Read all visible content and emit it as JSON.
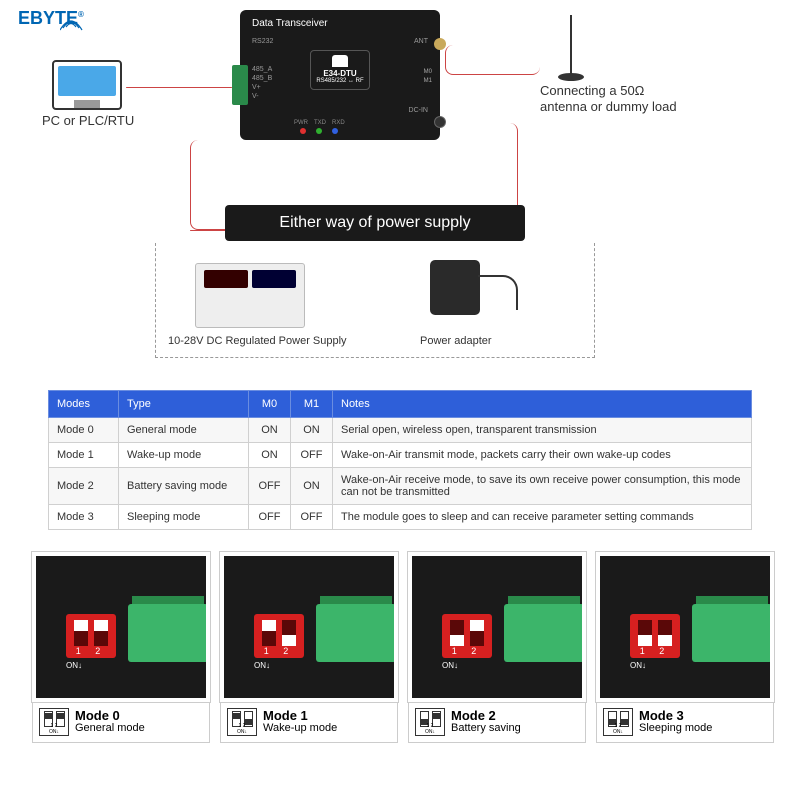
{
  "brand": "EBYTE",
  "pc_label": "PC or PLC/RTU",
  "device": {
    "title": "Data Transceiver",
    "model": "E34-DTU",
    "sub": "RS485/232 ↔ RF",
    "port_rs232": "RS232",
    "port_485a": "485_A",
    "port_485b": "485_B",
    "port_vp": "V+",
    "port_vm": "V-",
    "port_ant": "ANT",
    "port_dcin": "DC-IN",
    "pin_m0": "M0",
    "pin_m1": "M1",
    "leds": [
      "PWR",
      "TXD",
      "RXD"
    ],
    "led_colors": [
      "#e03030",
      "#30b030",
      "#3060e0"
    ]
  },
  "antenna_label_1": "Connecting a 50Ω",
  "antenna_label_2": "antenna or dummy load",
  "power_banner": "Either way of power supply",
  "psu_label": "10-28V DC Regulated Power Supply",
  "adapter_label": "Power adapter",
  "table": {
    "headers": [
      "Modes",
      "Type",
      "M0",
      "M1",
      "Notes"
    ],
    "rows": [
      [
        "Mode 0",
        "General mode",
        "ON",
        "ON",
        "Serial open, wireless open, transparent transmission"
      ],
      [
        "Mode 1",
        "Wake-up mode",
        "ON",
        "OFF",
        "Wake-on-Air transmit mode, packets carry their own wake-up codes"
      ],
      [
        "Mode 2",
        "Battery saving mode",
        "OFF",
        "ON",
        "Wake-on-Air receive mode, to save its own receive power consumption, this mode can not be transmitted"
      ],
      [
        "Mode 3",
        "Sleeping mode",
        "OFF",
        "OFF",
        "The module goes to sleep and can receive parameter setting commands"
      ]
    ]
  },
  "modes": [
    {
      "title": "Mode 0",
      "sub": "General mode",
      "sw": [
        1,
        1
      ]
    },
    {
      "title": "Mode 1",
      "sub": "Wake-up mode",
      "sw": [
        1,
        0
      ]
    },
    {
      "title": "Mode 2",
      "sub": "Battery saving",
      "sw": [
        0,
        1
      ]
    },
    {
      "title": "Mode 3",
      "sub": "Sleeping mode",
      "sw": [
        0,
        0
      ]
    }
  ],
  "dip_numbers": "1 2",
  "dip_on": "ON↓",
  "legend_bottom": "1 2\nON↓",
  "colors": {
    "accent": "#2e5fd9",
    "wire": "#c44",
    "dip": "#d62020",
    "term": "#3cb56a"
  }
}
